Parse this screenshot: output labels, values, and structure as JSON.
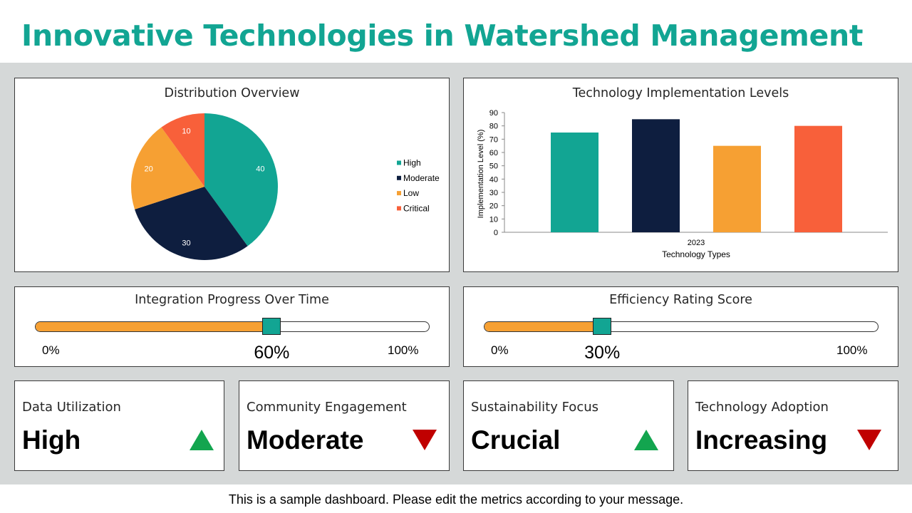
{
  "page": {
    "title": "Innovative Technologies in Watershed Management",
    "footer": "This is a sample dashboard. Please edit the metrics according to your message."
  },
  "colors": {
    "teal": "#12a593",
    "navy": "#0e1e3f",
    "orange": "#f6a033",
    "red_orange": "#f8603a",
    "up": "#13a54f",
    "down": "#c00000",
    "background_band": "#d5d8d8"
  },
  "chart_data": [
    {
      "type": "pie",
      "title": "Distribution Overview",
      "categories": [
        "High",
        "Moderate",
        "Low",
        "Critical"
      ],
      "values": [
        40,
        30,
        20,
        10
      ],
      "colors": [
        "#12a593",
        "#0e1e3f",
        "#f6a033",
        "#f8603a"
      ],
      "legend": "right"
    },
    {
      "type": "bar",
      "title": "Technology Implementation Levels",
      "categories": [
        "2023"
      ],
      "series": [
        {
          "values": [
            75
          ],
          "color": "#12a593"
        },
        {
          "values": [
            85
          ],
          "color": "#0e1e3f"
        },
        {
          "values": [
            65
          ],
          "color": "#f6a033"
        },
        {
          "values": [
            80
          ],
          "color": "#f8603a"
        }
      ],
      "xlabel": "Technology Types",
      "ylabel": "Implementation Level (%)",
      "ylim": [
        0,
        90
      ],
      "yticks": [
        0,
        10,
        20,
        30,
        40,
        50,
        60,
        70,
        80,
        90
      ],
      "grid": false
    }
  ],
  "gauges": [
    {
      "title": "Integration Progress Over Time",
      "value": 60,
      "value_label": "60%",
      "min_label": "0%",
      "max_label": "100%"
    },
    {
      "title": "Efficiency Rating Score",
      "value": 30,
      "value_label": "30%",
      "min_label": "0%",
      "max_label": "100%"
    }
  ],
  "kpis": [
    {
      "label": "Data Utilization",
      "value": "High",
      "trend": "up",
      "trend_icon": "triangle-up-icon"
    },
    {
      "label": "Community Engagement",
      "value": "Moderate",
      "trend": "down",
      "trend_icon": "triangle-down-icon"
    },
    {
      "label": "Sustainability Focus",
      "value": "Crucial",
      "trend": "up",
      "trend_icon": "triangle-up-icon"
    },
    {
      "label": "Technology Adoption",
      "value": "Increasing",
      "trend": "down",
      "trend_icon": "triangle-down-icon"
    }
  ]
}
